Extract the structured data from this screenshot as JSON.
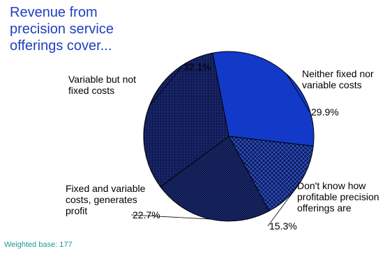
{
  "chart_data": {
    "type": "pie",
    "title": "Revenue from\nprecision service\nofferings cover...",
    "slices": [
      {
        "label": "Neither fixed nor\nvariable costs",
        "value": 29.9,
        "value_label": "29.9%",
        "color": "#1339c8",
        "pattern": "solid"
      },
      {
        "label": "Don't know how\nprofitable precision\nofferings are",
        "value": 15.3,
        "value_label": "15.3%",
        "color": "#0b1a5e",
        "pattern": "crosshatch"
      },
      {
        "label": "Fixed and variable\ncosts, generates\nprofit",
        "value": 22.7,
        "value_label": "22.7%",
        "color": "#0a1240",
        "pattern": "dense"
      },
      {
        "label": "Variable but not\nfixed costs",
        "value": 32.1,
        "value_label": "32.1%",
        "color": "#101a55",
        "pattern": "grid"
      }
    ],
    "footnote": "Weighted base:  177"
  }
}
